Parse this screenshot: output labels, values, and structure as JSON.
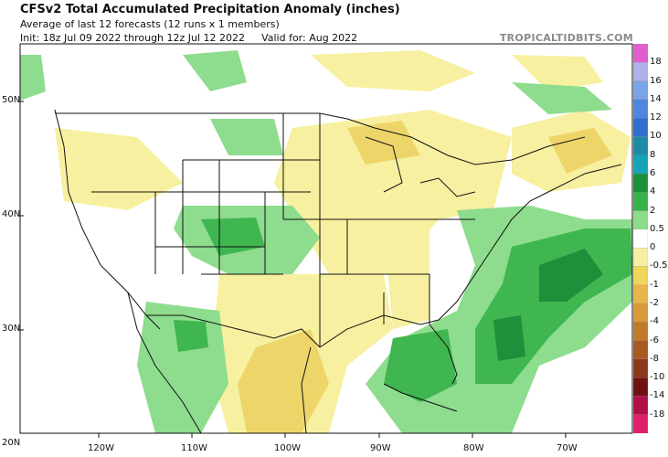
{
  "header": {
    "title": "CFSv2 Total Accumulated Precipitation Anomaly (inches)",
    "subtitle": "Average of last 12 forecasts (12 runs x 1 members)",
    "init": "Init: 18z Jul 09 2022 through 12z Jul 12 2022",
    "valid": "Valid for: Aug 2022",
    "credit": "TROPICALTIDBITS.COM"
  },
  "map": {
    "lat_labels": [
      "50N",
      "40N",
      "30N",
      "20N"
    ],
    "lon_labels": [
      "120W",
      "110W",
      "100W",
      "90W",
      "80W",
      "70W"
    ]
  },
  "legend": {
    "labels": [
      "18",
      "16",
      "14",
      "12",
      "10",
      "8",
      "6",
      "4",
      "2",
      "0.5",
      "0",
      "-0.5",
      "-1",
      "-2",
      "-4",
      "-6",
      "-8",
      "-10",
      "-14",
      "-18"
    ],
    "colors": [
      "#e05fd0",
      "#b0b0ea",
      "#7aa4e8",
      "#4f86e0",
      "#2f6fcf",
      "#1e8aa6",
      "#14a3b8",
      "#1b8f3a",
      "#36b24a",
      "#8bdc8b",
      "#ffffff",
      "#f5f0a0",
      "#f2d65a",
      "#e7b54a",
      "#d89a3a",
      "#c07a2a",
      "#a85a20",
      "#8a3a18",
      "#701010",
      "#b0104a",
      "#e0206a"
    ]
  }
}
